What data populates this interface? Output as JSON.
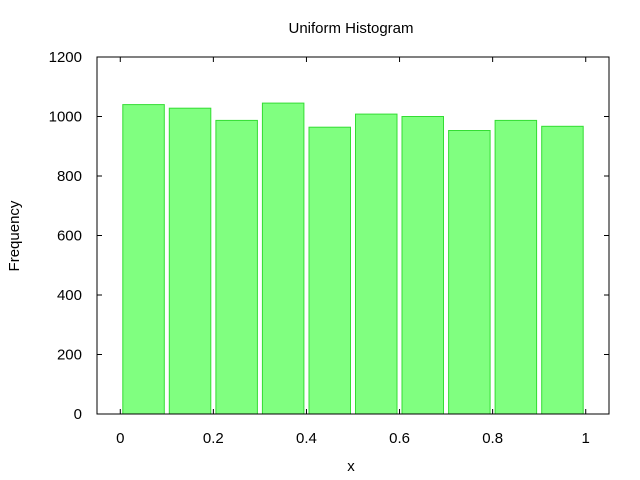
{
  "chart_data": {
    "type": "bar",
    "title": "Uniform Histogram",
    "xlabel": "x",
    "ylabel": "Frequency",
    "xlim": [
      -0.05,
      1.05
    ],
    "ylim": [
      0,
      1200
    ],
    "xticks": [
      "0",
      "0.2",
      "0.4",
      "0.6",
      "0.8",
      "1"
    ],
    "yticks": [
      "0",
      "200",
      "400",
      "600",
      "800",
      "1000",
      "1200"
    ],
    "grid": false,
    "bars": [
      {
        "bin_start": 0.0,
        "bin_end": 0.1,
        "value": 1040
      },
      {
        "bin_start": 0.1,
        "bin_end": 0.2,
        "value": 1028
      },
      {
        "bin_start": 0.2,
        "bin_end": 0.3,
        "value": 987
      },
      {
        "bin_start": 0.3,
        "bin_end": 0.4,
        "value": 1045
      },
      {
        "bin_start": 0.4,
        "bin_end": 0.5,
        "value": 964
      },
      {
        "bin_start": 0.5,
        "bin_end": 0.6,
        "value": 1008
      },
      {
        "bin_start": 0.6,
        "bin_end": 0.7,
        "value": 1000
      },
      {
        "bin_start": 0.7,
        "bin_end": 0.8,
        "value": 953
      },
      {
        "bin_start": 0.8,
        "bin_end": 0.9,
        "value": 987
      },
      {
        "bin_start": 0.9,
        "bin_end": 1.0,
        "value": 967
      }
    ],
    "colors": {
      "bar_fill": "#80ff80",
      "bar_stroke": "#33dd33"
    }
  }
}
